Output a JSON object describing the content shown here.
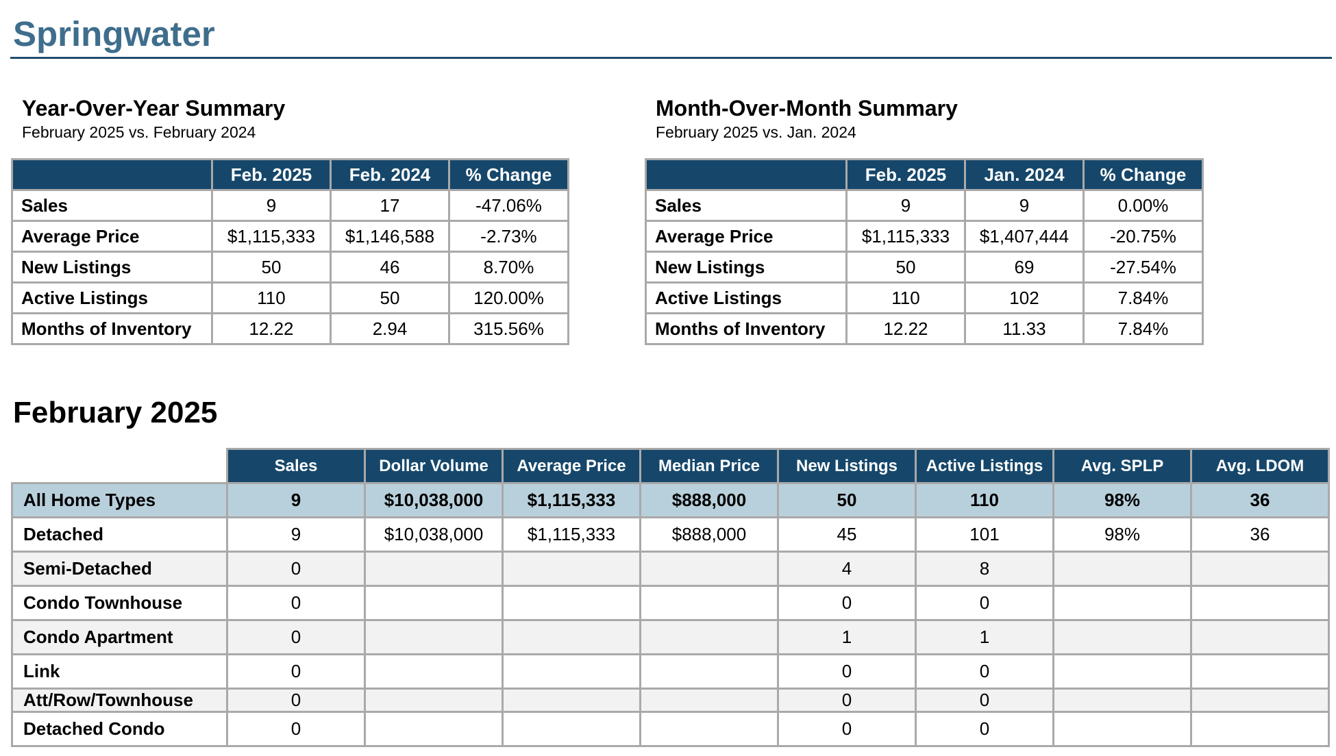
{
  "page_title": "Springwater",
  "yoy": {
    "title": "Year-Over-Year Summary",
    "subtitle": "February 2025 vs. February 2024",
    "headers": [
      "",
      "Feb. 2025",
      "Feb. 2024",
      "% Change"
    ],
    "rows": [
      {
        "label": "Sales",
        "a": "9",
        "b": "17",
        "change": "-47.06%"
      },
      {
        "label": "Average Price",
        "a": "$1,115,333",
        "b": "$1,146,588",
        "change": "-2.73%"
      },
      {
        "label": "New Listings",
        "a": "50",
        "b": "46",
        "change": "8.70%"
      },
      {
        "label": "Active Listings",
        "a": "110",
        "b": "50",
        "change": "120.00%"
      },
      {
        "label": "Months of Inventory",
        "a": "12.22",
        "b": "2.94",
        "change": "315.56%"
      }
    ]
  },
  "mom": {
    "title": "Month-Over-Month Summary",
    "subtitle": "February 2025 vs. Jan. 2024",
    "headers": [
      "",
      "Feb. 2025",
      "Jan. 2024",
      "% Change"
    ],
    "rows": [
      {
        "label": "Sales",
        "a": "9",
        "b": "9",
        "change": "0.00%"
      },
      {
        "label": "Average Price",
        "a": "$1,115,333",
        "b": "$1,407,444",
        "change": "-20.75%"
      },
      {
        "label": "New Listings",
        "a": "50",
        "b": "69",
        "change": "-27.54%"
      },
      {
        "label": "Active Listings",
        "a": "110",
        "b": "102",
        "change": "7.84%"
      },
      {
        "label": "Months of Inventory",
        "a": "12.22",
        "b": "11.33",
        "change": "7.84%"
      }
    ]
  },
  "monthly": {
    "title": "February 2025",
    "headers": [
      "Sales",
      "Dollar Volume",
      "Average Price",
      "Median Price",
      "New Listings",
      "Active Listings",
      "Avg. SPLP",
      "Avg. LDOM"
    ],
    "rows": [
      {
        "label": "All Home Types",
        "cells": [
          "9",
          "$10,038,000",
          "$1,115,333",
          "$888,000",
          "50",
          "110",
          "98%",
          "36"
        ]
      },
      {
        "label": "Detached",
        "cells": [
          "9",
          "$10,038,000",
          "$1,115,333",
          "$888,000",
          "45",
          "101",
          "98%",
          "36"
        ]
      },
      {
        "label": "Semi-Detached",
        "cells": [
          "0",
          "",
          "",
          "",
          "4",
          "8",
          "",
          ""
        ]
      },
      {
        "label": "Condo Townhouse",
        "cells": [
          "0",
          "",
          "",
          "",
          "0",
          "0",
          "",
          ""
        ]
      },
      {
        "label": "Condo Apartment",
        "cells": [
          "0",
          "",
          "",
          "",
          "1",
          "1",
          "",
          ""
        ]
      },
      {
        "label": "Link",
        "cells": [
          "0",
          "",
          "",
          "",
          "0",
          "0",
          "",
          ""
        ]
      },
      {
        "label": "Att/Row/Townhouse",
        "cells": [
          "0",
          "",
          "",
          "",
          "0",
          "0",
          "",
          ""
        ]
      },
      {
        "label": "Detached Condo",
        "cells": [
          "0",
          "",
          "",
          "",
          "0",
          "0",
          "",
          ""
        ]
      }
    ]
  }
}
